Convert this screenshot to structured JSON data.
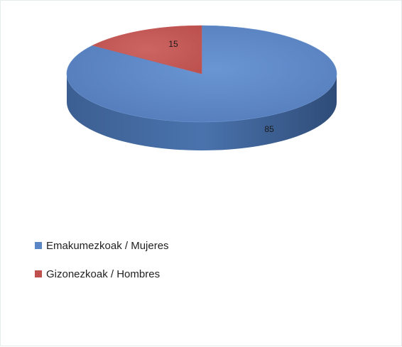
{
  "chart_data": {
    "type": "pie",
    "three_d": true,
    "title": "",
    "categories": [
      "Emakumezkoak / Mujeres",
      "Gizonezkoak / Hombres"
    ],
    "values": [
      85,
      15
    ],
    "colors": [
      "#5b86c5",
      "#c0504d"
    ],
    "data_labels": [
      "85",
      "15"
    ],
    "legend_position": "bottom-left"
  }
}
